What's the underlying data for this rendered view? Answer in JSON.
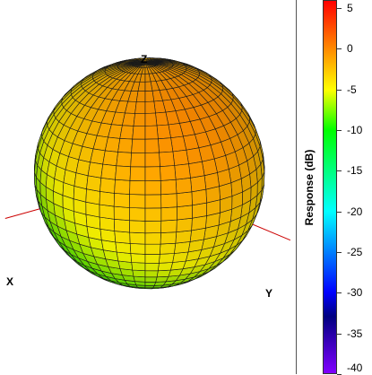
{
  "chart_data": {
    "type": "3d-surface",
    "axes": {
      "x_label": "X",
      "y_label": "Y",
      "z_label": "Z"
    },
    "colorbar": {
      "label": "Response  (dB)",
      "range": [
        -40,
        6
      ],
      "ticks": [
        5,
        0,
        -5,
        -10,
        -15,
        -20,
        -25,
        -30,
        -35,
        -40
      ],
      "stops": [
        {
          "value": 6,
          "color": "#ff0000"
        },
        {
          "value": 0,
          "color": "#ff8c00"
        },
        {
          "value": -5,
          "color": "#ffff00"
        },
        {
          "value": -10,
          "color": "#00ff00"
        },
        {
          "value": -20,
          "color": "#00ffff"
        },
        {
          "value": -25,
          "color": "#0080ff"
        },
        {
          "value": -30,
          "color": "#0000ff"
        },
        {
          "value": -33,
          "color": "#000080"
        },
        {
          "value": -40,
          "color": "#8000ff"
        }
      ]
    },
    "surface": {
      "grid": "lat-long",
      "peak_response_db": 0,
      "min_response_db": -11
    }
  }
}
